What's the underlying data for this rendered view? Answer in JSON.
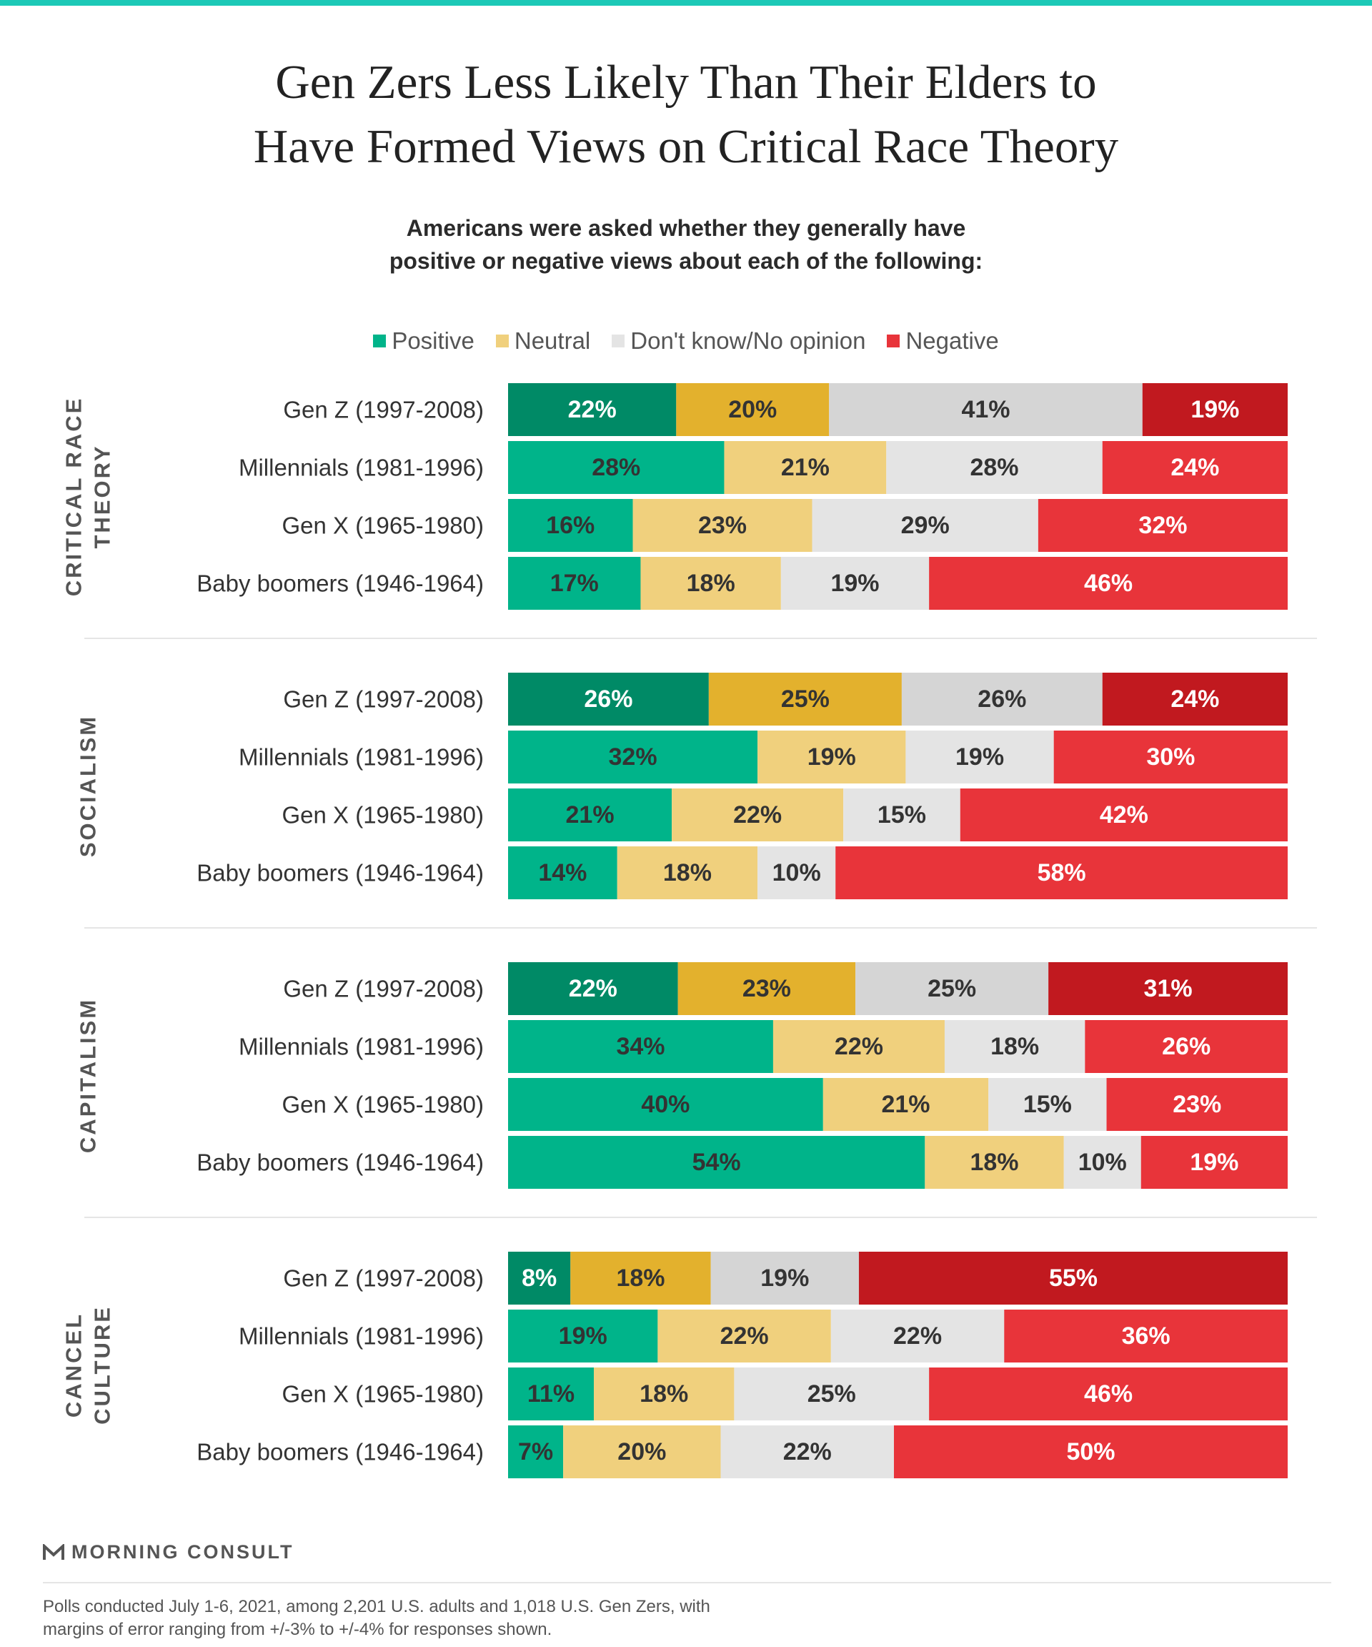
{
  "title": {
    "line1": "Gen Zers Less Likely Than Their Elders to",
    "line2": "Have Formed Views on Critical Race Theory"
  },
  "subtitle": {
    "line1": "Americans were asked whether they generally have",
    "line2": "positive or negative views about each of the following:"
  },
  "legend": [
    {
      "label": "Positive",
      "color": "#00b48a"
    },
    {
      "label": "Neutral",
      "color": "#f0d07d"
    },
    {
      "label": "Don't know/No opinion",
      "color": "#e4e4e4"
    },
    {
      "label": "Negative",
      "color": "#e8343a"
    }
  ],
  "colors": {
    "positive": "#00b48a",
    "positive_highlight": "#008a66",
    "neutral": "#f0d07d",
    "neutral_highlight": "#e3b12d",
    "dontknow": "#e4e4e4",
    "dontknow_highlight": "#d5d5d5",
    "negative": "#e8343a",
    "negative_highlight": "#c1191f",
    "label_dark": "#333333",
    "label_light": "#ffffff"
  },
  "chart_data": {
    "type": "bar",
    "orientation": "horizontal",
    "stacked": true,
    "legend_position": "top",
    "categories": [
      "Gen Z (1997-2008)",
      "Millennials (1981-1996)",
      "Gen X (1965-1980)",
      "Baby boomers (1946-1964)"
    ],
    "series_names": [
      "Positive",
      "Neutral",
      "Don't know/No opinion",
      "Negative"
    ],
    "groups": [
      {
        "label": [
          "CRITICAL RACE",
          "THEORY"
        ],
        "values": [
          [
            22,
            20,
            41,
            19
          ],
          [
            28,
            21,
            28,
            24
          ],
          [
            16,
            23,
            29,
            32
          ],
          [
            17,
            18,
            19,
            46
          ]
        ]
      },
      {
        "label": [
          "SOCIALISM"
        ],
        "values": [
          [
            26,
            25,
            26,
            24
          ],
          [
            32,
            19,
            19,
            30
          ],
          [
            21,
            22,
            15,
            42
          ],
          [
            14,
            18,
            10,
            58
          ]
        ]
      },
      {
        "label": [
          "CAPITALISM"
        ],
        "values": [
          [
            22,
            23,
            25,
            31
          ],
          [
            34,
            22,
            18,
            26
          ],
          [
            40,
            21,
            15,
            23
          ],
          [
            54,
            18,
            10,
            19
          ]
        ]
      },
      {
        "label": [
          "CANCEL",
          "CULTURE"
        ],
        "values": [
          [
            8,
            18,
            19,
            55
          ],
          [
            19,
            22,
            22,
            36
          ],
          [
            11,
            18,
            25,
            46
          ],
          [
            7,
            20,
            22,
            50
          ]
        ]
      }
    ]
  },
  "logo": {
    "text": "MORNING CONSULT"
  },
  "footnote": {
    "line1": "Polls conducted July 1-6, 2021, among 2,201 U.S. adults and 1,018 U.S. Gen Zers, with",
    "line2": "margins of error ranging from +/-3% to +/-4% for responses shown."
  }
}
